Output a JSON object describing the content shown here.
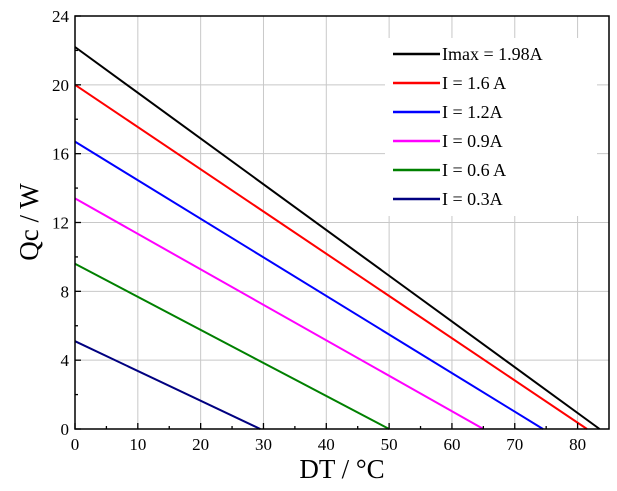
{
  "chart_data": {
    "type": "line",
    "xlabel": "DT / °C",
    "ylabel": "Qc / W",
    "xlim": [
      0,
      85
    ],
    "ylim": [
      0,
      24
    ],
    "xticks": [
      0,
      10,
      20,
      30,
      40,
      50,
      60,
      70,
      80
    ],
    "yticks": [
      0,
      4,
      8,
      12,
      16,
      20,
      24
    ],
    "xtick_labels": [
      "0",
      "10",
      "20",
      "30",
      "40",
      "50",
      "60",
      "70",
      "80"
    ],
    "ytick_labels": [
      "0",
      "4",
      "8",
      "12",
      "16",
      "20",
      "24"
    ],
    "grid": true,
    "legend_position": "top-right",
    "series": [
      {
        "name": "Imax = 1.98A",
        "color": "#000000",
        "x": [
          0,
          83.5
        ],
        "y": [
          22.2,
          0
        ]
      },
      {
        "name": "I = 1.6 A",
        "color": "#ff0000",
        "x": [
          0,
          81.5
        ],
        "y": [
          20.0,
          0
        ]
      },
      {
        "name": "I = 1.2A",
        "color": "#0000ff",
        "x": [
          0,
          74.5
        ],
        "y": [
          16.7,
          0
        ]
      },
      {
        "name": "I = 0.9A",
        "color": "#ff00ff",
        "x": [
          0,
          65.0
        ],
        "y": [
          13.4,
          0
        ]
      },
      {
        "name": "I = 0.6 A",
        "color": "#008000",
        "x": [
          0,
          50.0
        ],
        "y": [
          9.6,
          0
        ]
      },
      {
        "name": "I = 0.3A",
        "color": "#000080",
        "x": [
          0,
          29.5
        ],
        "y": [
          5.1,
          0
        ]
      }
    ]
  }
}
